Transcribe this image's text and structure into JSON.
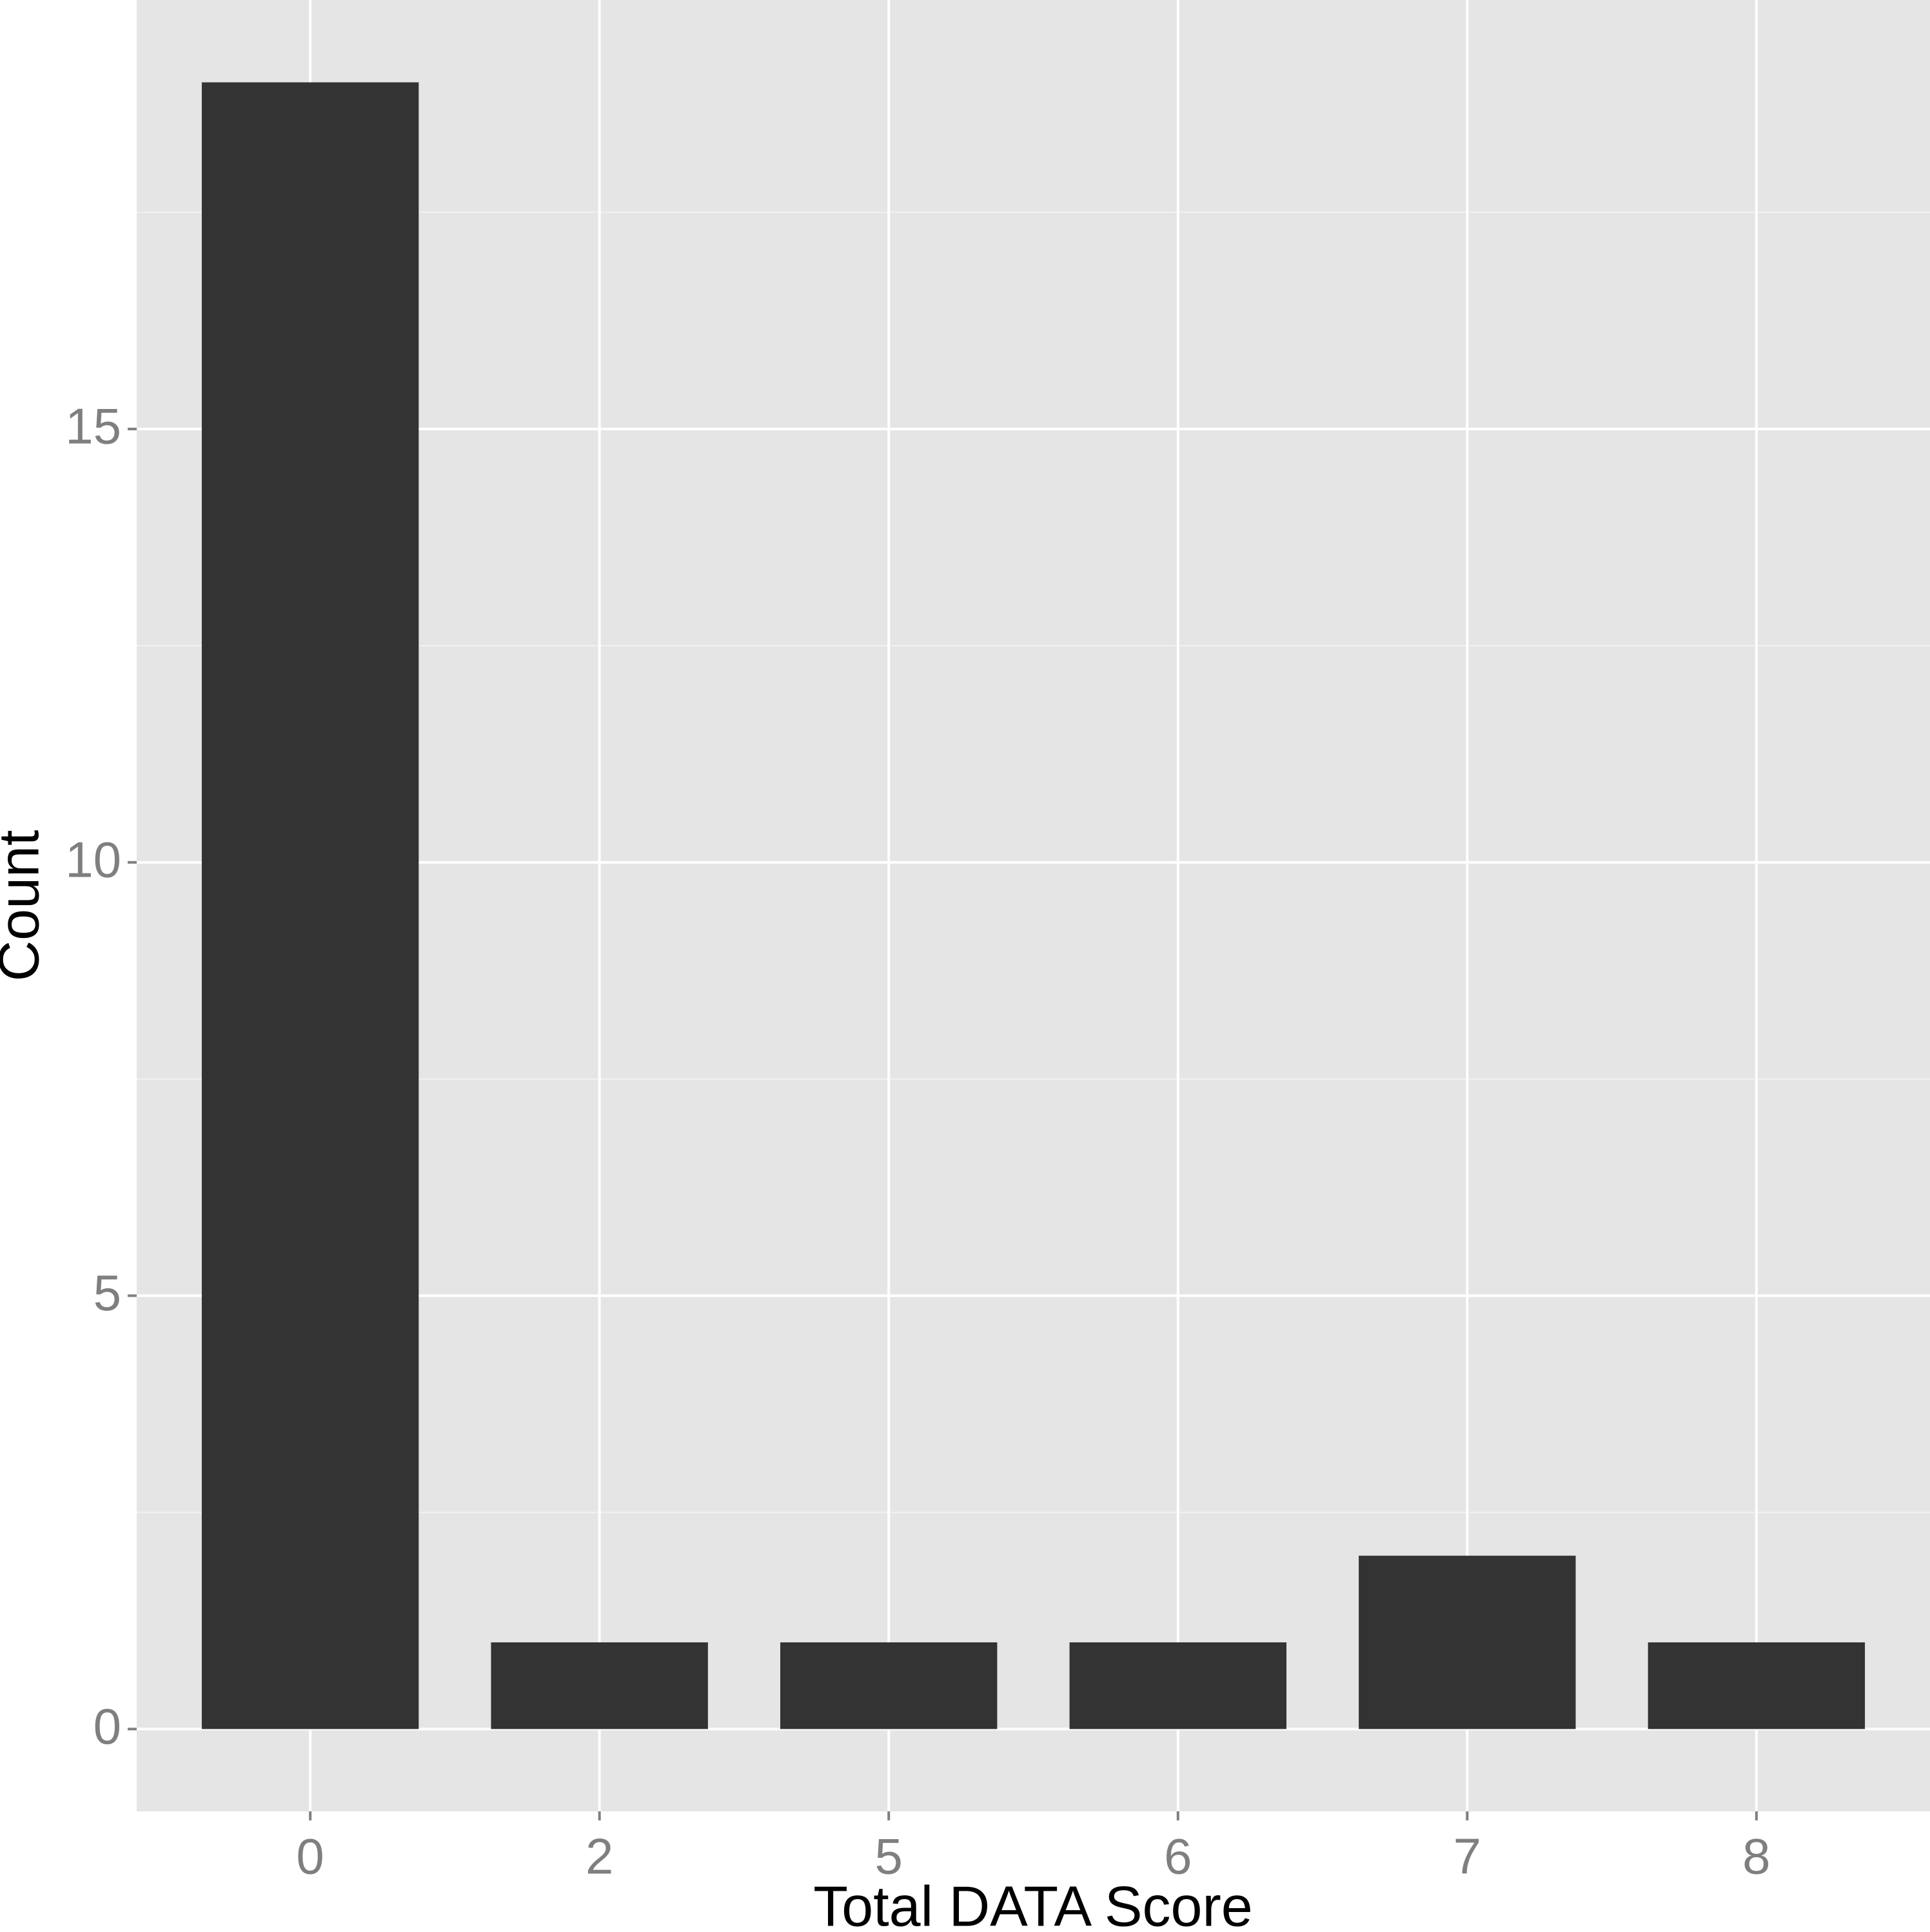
{
  "chart_data": {
    "type": "bar",
    "x_label": "Total DATA Score",
    "y_label": "Count",
    "categories": [
      "0",
      "2",
      "5",
      "6",
      "7",
      "8"
    ],
    "values": [
      19,
      1,
      1,
      1,
      2,
      1
    ],
    "color": "#333333",
    "ylim": [
      -0.95,
      19.95
    ],
    "yticks": [
      0,
      5,
      10,
      15
    ],
    "grid": true
  }
}
